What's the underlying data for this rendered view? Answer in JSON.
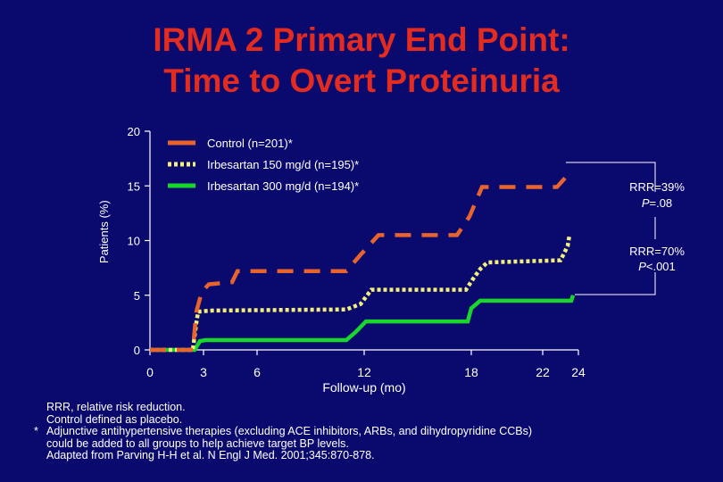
{
  "title": {
    "line1": "IRMA 2 Primary End Point:",
    "line2": "Time to Overt Proteinuria"
  },
  "colors": {
    "background": "#0a0a6e",
    "title": "#e32b20",
    "control": "#e8642c",
    "irbesartan150": "#f2f07a",
    "irbesartan300": "#19d62a",
    "text": "#ffffff"
  },
  "chart_data": {
    "type": "line",
    "title": "IRMA 2 Primary End Point: Time to Overt Proteinuria",
    "xlabel": "Follow-up (mo)",
    "ylabel": "Patients (%)",
    "xlim": [
      0,
      24
    ],
    "ylim": [
      0,
      20
    ],
    "x_ticks": [
      "0",
      "3",
      "6",
      "12",
      "18",
      "22",
      "24"
    ],
    "y_ticks": [
      "0",
      "5",
      "10",
      "15",
      "20"
    ],
    "grid": false,
    "legend_position": "top",
    "series": [
      {
        "name": "Control (n=201)*",
        "style": "dashed",
        "color": "#e8642c",
        "points": [
          [
            0,
            0
          ],
          [
            2.4,
            0
          ],
          [
            2.6,
            3.5
          ],
          [
            2.9,
            5.3
          ],
          [
            3.3,
            6.0
          ],
          [
            4.6,
            6.2
          ],
          [
            4.9,
            7.2
          ],
          [
            11.0,
            7.2
          ],
          [
            11.8,
            8.7
          ],
          [
            12.8,
            10.5
          ],
          [
            17.2,
            10.5
          ],
          [
            17.9,
            12.2
          ],
          [
            18.6,
            14.9
          ],
          [
            22.8,
            14.9
          ],
          [
            23.3,
            15.8
          ]
        ]
      },
      {
        "name": "Irbesartan 150 mg/d (n=195)*",
        "style": "dotted",
        "color": "#f2f07a",
        "points": [
          [
            0,
            0
          ],
          [
            2.4,
            0
          ],
          [
            2.6,
            2.5
          ],
          [
            2.7,
            3.5
          ],
          [
            3.5,
            3.6
          ],
          [
            11.0,
            3.7
          ],
          [
            11.8,
            4.2
          ],
          [
            12.4,
            5.5
          ],
          [
            17.7,
            5.5
          ],
          [
            18.1,
            6.5
          ],
          [
            18.5,
            7.4
          ],
          [
            18.9,
            8.0
          ],
          [
            23.0,
            8.2
          ],
          [
            23.4,
            9.5
          ],
          [
            23.5,
            10.5
          ]
        ]
      },
      {
        "name": "Irbesartan 300 mg/d (n=194)*",
        "style": "solid",
        "color": "#19d62a",
        "points": [
          [
            0,
            0
          ],
          [
            2.5,
            0
          ],
          [
            2.8,
            0.8
          ],
          [
            3.1,
            0.9
          ],
          [
            11.0,
            0.9
          ],
          [
            11.5,
            1.6
          ],
          [
            12.1,
            2.6
          ],
          [
            17.8,
            2.6
          ],
          [
            18.0,
            3.8
          ],
          [
            18.5,
            4.5
          ],
          [
            23.6,
            4.5
          ],
          [
            23.7,
            5.0
          ]
        ]
      }
    ],
    "annotations": [
      {
        "line1": "RRR=39%",
        "line2": "P=.08"
      },
      {
        "line1": "RRR=70%",
        "line2": "P<.001"
      }
    ]
  },
  "footnotes": [
    {
      "mark": "",
      "text": "RRR, relative risk reduction."
    },
    {
      "mark": "",
      "text": "Control defined as placebo."
    },
    {
      "mark": "*",
      "text": "Adjunctive antihypertensive therapies (excluding ACE inhibitors, ARBs, and dihydropyridine CCBs)"
    },
    {
      "mark": "",
      "text": "could be added to all groups to help achieve target BP levels."
    },
    {
      "mark": "",
      "text": "Adapted from Parving H-H et al. N Engl J Med. 2001;345:870-878."
    }
  ]
}
